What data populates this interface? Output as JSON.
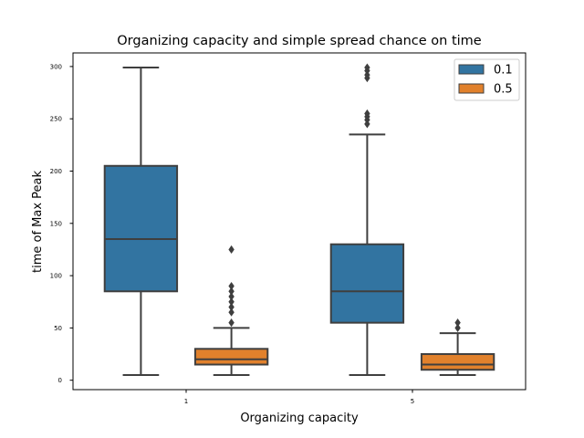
{
  "chart_data": {
    "type": "boxplot",
    "title": "Organizing capacity and simple spread chance on time",
    "xlabel": "Organizing capacity",
    "ylabel": "time of Max Peak",
    "categories": [
      "1",
      "5"
    ],
    "ylim": [
      -9,
      313
    ],
    "yticks": [
      0,
      50,
      100,
      150,
      200,
      250,
      300
    ],
    "legend_position": "top-right",
    "series": [
      {
        "name": "0.1",
        "color": "#3274a1",
        "boxes": [
          {
            "category": "1",
            "whisker_low": 5,
            "q1": 85,
            "median": 135,
            "q3": 205,
            "whisker_high": 299,
            "outliers": []
          },
          {
            "category": "5",
            "whisker_low": 5,
            "q1": 55,
            "median": 85,
            "q3": 130,
            "whisker_high": 235,
            "outliers": [
              245,
              249,
              252,
              255,
              289,
              292,
              296,
              299
            ]
          }
        ]
      },
      {
        "name": "0.5",
        "color": "#e1812c",
        "boxes": [
          {
            "category": "1",
            "whisker_low": 5,
            "q1": 15,
            "median": 20,
            "q3": 30,
            "whisker_high": 50,
            "outliers": [
              55,
              65,
              70,
              75,
              80,
              85,
              90,
              125
            ]
          },
          {
            "category": "5",
            "whisker_low": 5,
            "q1": 10,
            "median": 15,
            "q3": 25,
            "whisker_high": 45,
            "outliers": [
              50,
              55
            ]
          }
        ]
      }
    ]
  }
}
